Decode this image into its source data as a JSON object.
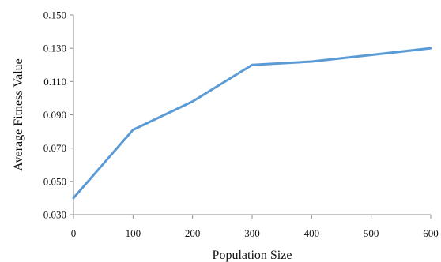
{
  "chart_data": {
    "type": "line",
    "title": "",
    "xlabel": "Population Size",
    "ylabel": "Average Fitness Value",
    "x": [
      0,
      100,
      200,
      300,
      400,
      500,
      600
    ],
    "x_tick_labels": [
      "0",
      "100",
      "200",
      "300",
      "400",
      "500",
      "600"
    ],
    "y_tick_labels": [
      "0.030",
      "0.050",
      "0.070",
      "0.090",
      "0.110",
      "0.130",
      "0.150"
    ],
    "y_ticks": [
      0.03,
      0.05,
      0.07,
      0.09,
      0.11,
      0.13,
      0.15
    ],
    "xlim": [
      0,
      600
    ],
    "ylim": [
      0.03,
      0.15
    ],
    "grid": false,
    "legend": "none",
    "series": [
      {
        "values": [
          0.04,
          0.081,
          0.098,
          0.12,
          0.122,
          0.126,
          0.13
        ],
        "color": "#5b9bd5"
      }
    ]
  }
}
